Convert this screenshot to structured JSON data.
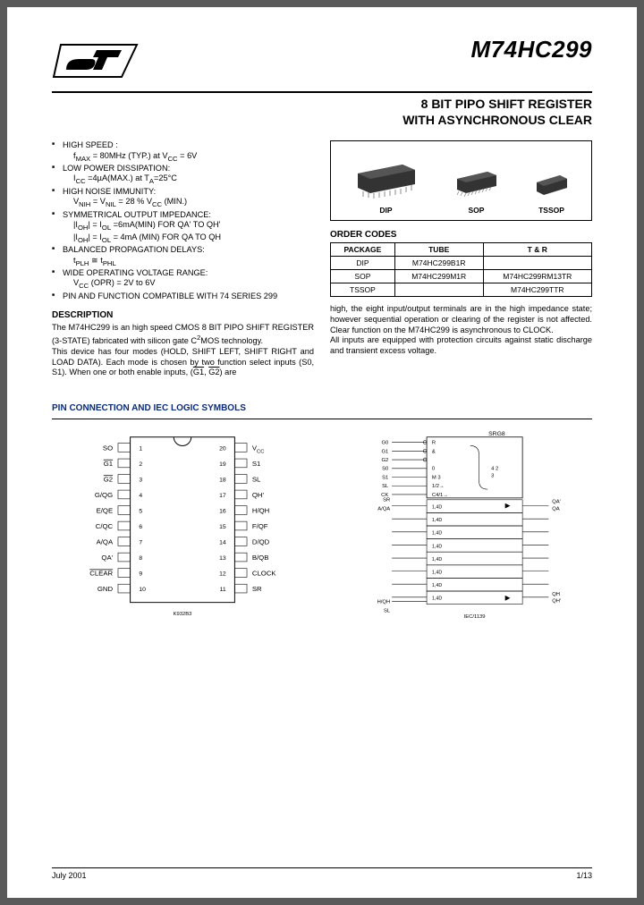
{
  "header": {
    "part_number": "M74HC299",
    "subtitle_line1": "8 BIT PIPO SHIFT REGISTER",
    "subtitle_line2": "WITH ASYNCHRONOUS CLEAR"
  },
  "features": [
    {
      "head": "HIGH SPEED :",
      "sub": "f<sub>MAX</sub> = 80MHz (TYP.) at V<sub>CC</sub> = 6V"
    },
    {
      "head": "LOW POWER DISSIPATION:",
      "sub": "I<sub>CC</sub> =4µA(MAX.) at T<sub>A</sub>=25°C"
    },
    {
      "head": "HIGH NOISE IMMUNITY:",
      "sub": "V<sub>NIH</sub> = V<sub>NIL</sub> = 28 % V<sub>CC</sub> (MIN.)"
    },
    {
      "head": "SYMMETRICAL OUTPUT IMPEDANCE:",
      "sub": "|I<sub>OH</sub>| = I<sub>OL</sub> =6mA(MIN) FOR QA' TO QH'<br>|I<sub>OH</sub>| = I<sub>OL</sub> = 4mA (MIN) FOR QA TO QH"
    },
    {
      "head": "BALANCED PROPAGATION DELAYS:",
      "sub": "t<sub>PLH</sub> ≅ t<sub>PHL</sub>"
    },
    {
      "head": "WIDE OPERATING VOLTAGE RANGE:",
      "sub": "V<sub>CC</sub> (OPR) = 2V to 6V"
    },
    {
      "head": "PIN AND FUNCTION COMPATIBLE WITH 74 SERIES 299",
      "sub": ""
    }
  ],
  "description": {
    "heading": "DESCRIPTION",
    "p1": "The M74HC299 is an high speed CMOS 8 BIT PIPO SHIFT REGISTER (3-STATE) fabricated with silicon gate C<sup>2</sup>MOS technology.",
    "p2": "This device has four modes (HOLD, SHIFT LEFT, SHIFT RIGHT and LOAD DATA). Each mode is chosen by two function select inputs (S0, S1). When one or both enable inputs, (<span class=\"ov\">G1</span>, <span class=\"ov\">G2</span>) are"
  },
  "packages": {
    "labels": [
      "DIP",
      "SOP",
      "TSSOP"
    ]
  },
  "order": {
    "heading": "ORDER CODES",
    "columns": [
      "PACKAGE",
      "TUBE",
      "T & R"
    ],
    "rows": [
      [
        "DIP",
        "M74HC299B1R",
        ""
      ],
      [
        "SOP",
        "M74HC299M1R",
        "M74HC299RM13TR"
      ],
      [
        "TSSOP",
        "",
        "M74HC299TTR"
      ]
    ]
  },
  "right_desc": {
    "p1": "high, the eight input/output terminals are in the high impedance state; however sequential operation or clearing of the register is not affected. Clear function on the M74HC299 is asynchronous to CLOCK.",
    "p2": "All inputs are equipped with protection circuits against static discharge and transient excess voltage."
  },
  "pin_section": {
    "heading": "PIN CONNECTION AND IEC LOGIC SYMBOLS",
    "left_pins": [
      "SO",
      "G1",
      "G2",
      "G/QG",
      "E/QE",
      "C/QC",
      "A/QA",
      "QA'",
      "CLEAR",
      "GND"
    ],
    "right_pins": [
      "V_CC",
      "S1",
      "SL",
      "QH'",
      "H/QH",
      "F/QF",
      "D/QD",
      "B/QB",
      "CLOCK",
      "SR"
    ],
    "diag_code_left": "K932B3",
    "diag_code_right": "SRG8"
  },
  "footer": {
    "date": "July 2001",
    "page": "1/13"
  },
  "colors": {
    "text": "#000000",
    "heading_blue": "#0a2a7a",
    "page_bg": "#ffffff",
    "outer_bg": "#5a5a5a"
  }
}
